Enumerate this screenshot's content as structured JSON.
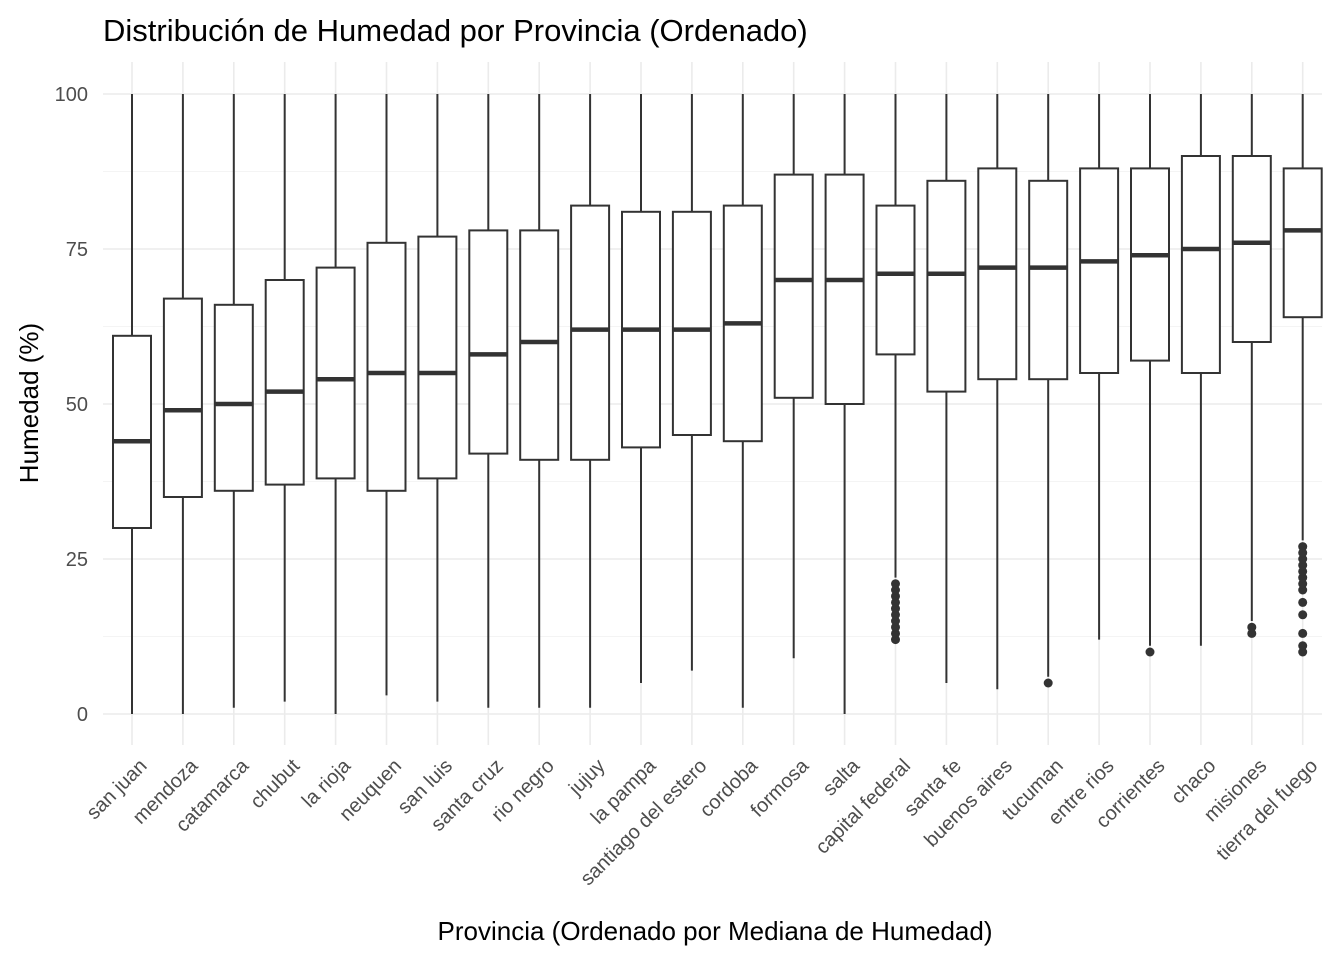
{
  "chart_data": {
    "type": "boxplot",
    "title": "Distribución de Humedad por Provincia (Ordenado)",
    "xlabel": "Provincia (Ordenado por Mediana de Humedad)",
    "ylabel": "Humedad (%)",
    "ylim": [
      -5,
      105
    ],
    "yticks": [
      0,
      25,
      50,
      75,
      100
    ],
    "grid": true,
    "theme": "minimal",
    "colors": {
      "box_line": "#333333",
      "box_fill": "#ffffff",
      "grid": "#ebebeb",
      "tick_text": "#4d4d4d"
    },
    "categories": [
      "san juan",
      "mendoza",
      "catamarca",
      "chubut",
      "la rioja",
      "neuquen",
      "san luis",
      "santa cruz",
      "rio negro",
      "jujuy",
      "la pampa",
      "santiago del estero",
      "cordoba",
      "formosa",
      "salta",
      "capital federal",
      "santa fe",
      "buenos aires",
      "tucuman",
      "entre rios",
      "corrientes",
      "chaco",
      "misiones",
      "tierra del fuego"
    ],
    "boxes": [
      {
        "min": 0,
        "q1": 30,
        "median": 44,
        "q3": 61,
        "max": 100,
        "outliers": []
      },
      {
        "min": 0,
        "q1": 35,
        "median": 49,
        "q3": 67,
        "max": 100,
        "outliers": []
      },
      {
        "min": 1,
        "q1": 36,
        "median": 50,
        "q3": 66,
        "max": 100,
        "outliers": []
      },
      {
        "min": 2,
        "q1": 37,
        "median": 52,
        "q3": 70,
        "max": 100,
        "outliers": []
      },
      {
        "min": 0,
        "q1": 38,
        "median": 54,
        "q3": 72,
        "max": 100,
        "outliers": []
      },
      {
        "min": 3,
        "q1": 36,
        "median": 55,
        "q3": 76,
        "max": 100,
        "outliers": []
      },
      {
        "min": 2,
        "q1": 38,
        "median": 55,
        "q3": 77,
        "max": 100,
        "outliers": []
      },
      {
        "min": 1,
        "q1": 42,
        "median": 58,
        "q3": 78,
        "max": 100,
        "outliers": []
      },
      {
        "min": 1,
        "q1": 41,
        "median": 60,
        "q3": 78,
        "max": 100,
        "outliers": []
      },
      {
        "min": 1,
        "q1": 41,
        "median": 62,
        "q3": 82,
        "max": 100,
        "outliers": []
      },
      {
        "min": 5,
        "q1": 43,
        "median": 62,
        "q3": 81,
        "max": 100,
        "outliers": []
      },
      {
        "min": 7,
        "q1": 45,
        "median": 62,
        "q3": 81,
        "max": 100,
        "outliers": []
      },
      {
        "min": 1,
        "q1": 44,
        "median": 63,
        "q3": 82,
        "max": 100,
        "outliers": []
      },
      {
        "min": 9,
        "q1": 51,
        "median": 70,
        "q3": 87,
        "max": 100,
        "outliers": []
      },
      {
        "min": 0,
        "q1": 50,
        "median": 70,
        "q3": 87,
        "max": 100,
        "outliers": []
      },
      {
        "min": 22,
        "q1": 58,
        "median": 71,
        "q3": 82,
        "max": 100,
        "outliers": [
          12,
          13,
          14,
          15,
          16,
          17,
          18,
          19,
          20,
          21
        ]
      },
      {
        "min": 5,
        "q1": 52,
        "median": 71,
        "q3": 86,
        "max": 100,
        "outliers": []
      },
      {
        "min": 4,
        "q1": 54,
        "median": 72,
        "q3": 88,
        "max": 100,
        "outliers": []
      },
      {
        "min": 6,
        "q1": 54,
        "median": 72,
        "q3": 86,
        "max": 100,
        "outliers": [
          5
        ]
      },
      {
        "min": 12,
        "q1": 55,
        "median": 73,
        "q3": 88,
        "max": 100,
        "outliers": []
      },
      {
        "min": 11,
        "q1": 57,
        "median": 74,
        "q3": 88,
        "max": 100,
        "outliers": [
          10
        ]
      },
      {
        "min": 11,
        "q1": 55,
        "median": 75,
        "q3": 90,
        "max": 100,
        "outliers": []
      },
      {
        "min": 15,
        "q1": 60,
        "median": 76,
        "q3": 90,
        "max": 100,
        "outliers": [
          13,
          14
        ]
      },
      {
        "min": 28,
        "q1": 64,
        "median": 78,
        "q3": 88,
        "max": 100,
        "outliers": [
          10,
          11,
          13,
          16,
          18,
          20,
          21,
          22,
          23,
          24,
          25,
          26,
          27
        ]
      }
    ]
  }
}
